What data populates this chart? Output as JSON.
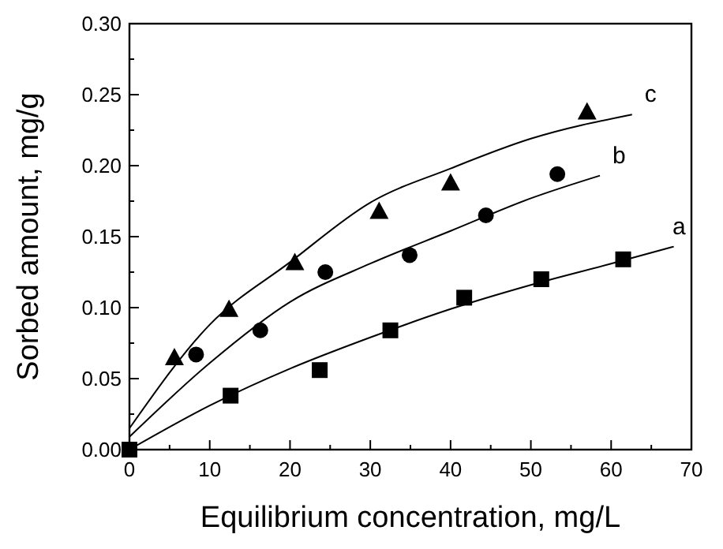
{
  "chart_data": {
    "type": "scatter",
    "xlabel": "Equilibrium concentration, mg/L",
    "ylabel": "Sorbed amount, mg/g",
    "xlim": [
      0,
      70
    ],
    "ylim": [
      0,
      0.3
    ],
    "xticks": [
      0,
      10,
      20,
      30,
      40,
      50,
      60,
      70
    ],
    "yticks": [
      {
        "value": 0,
        "label": "0.00"
      },
      {
        "value": 0.05,
        "label": "0.05"
      },
      {
        "value": 0.1,
        "label": "0.10"
      },
      {
        "value": 0.15,
        "label": "0.15"
      },
      {
        "value": 0.2,
        "label": "0.20"
      },
      {
        "value": 0.25,
        "label": "0.25"
      },
      {
        "value": 0.3,
        "label": "0.30"
      }
    ],
    "grid": false,
    "series": [
      {
        "marker": "square",
        "color": "#000000",
        "x": [
          0,
          12.6,
          23.7,
          32.5,
          41.7,
          51.3,
          61.5
        ],
        "values": [
          0,
          0.038,
          0.056,
          0.084,
          0.107,
          0.12,
          0.134
        ]
      },
      {
        "marker": "circle",
        "color": "#000000",
        "x": [
          8.3,
          16.3,
          24.4,
          34.9,
          44.4,
          53.3
        ],
        "values": [
          0.067,
          0.084,
          0.125,
          0.137,
          0.165,
          0.194
        ]
      },
      {
        "marker": "triangle",
        "color": "#000000",
        "x": [
          5.6,
          12.4,
          20.6,
          31.1,
          40,
          57
        ],
        "values": [
          0.065,
          0.099,
          0.132,
          0.168,
          0.188,
          0.238
        ]
      },
      {
        "type": "line",
        "name": "a",
        "marker": "none",
        "line_style": "solid",
        "color": "#000000",
        "x": [
          0,
          10,
          20,
          30,
          40,
          50,
          60,
          67.8
        ],
        "values": [
          0,
          0.031,
          0.057,
          0.079,
          0.099,
          0.116,
          0.131,
          0.143
        ]
      },
      {
        "type": "line",
        "name": "b",
        "marker": "none",
        "line_style": "solid",
        "color": "#000000",
        "x": [
          0,
          10,
          20,
          30,
          40,
          50,
          58.6
        ],
        "values": [
          0.009,
          0.061,
          0.104,
          0.131,
          0.154,
          0.177,
          0.193
        ]
      },
      {
        "type": "line",
        "name": "c",
        "marker": "none",
        "line_style": "solid",
        "color": "#000000",
        "x": [
          0,
          10,
          20,
          30,
          40,
          50,
          62.6
        ],
        "values": [
          0.015,
          0.088,
          0.132,
          0.174,
          0.198,
          0.219,
          0.236
        ]
      }
    ]
  }
}
